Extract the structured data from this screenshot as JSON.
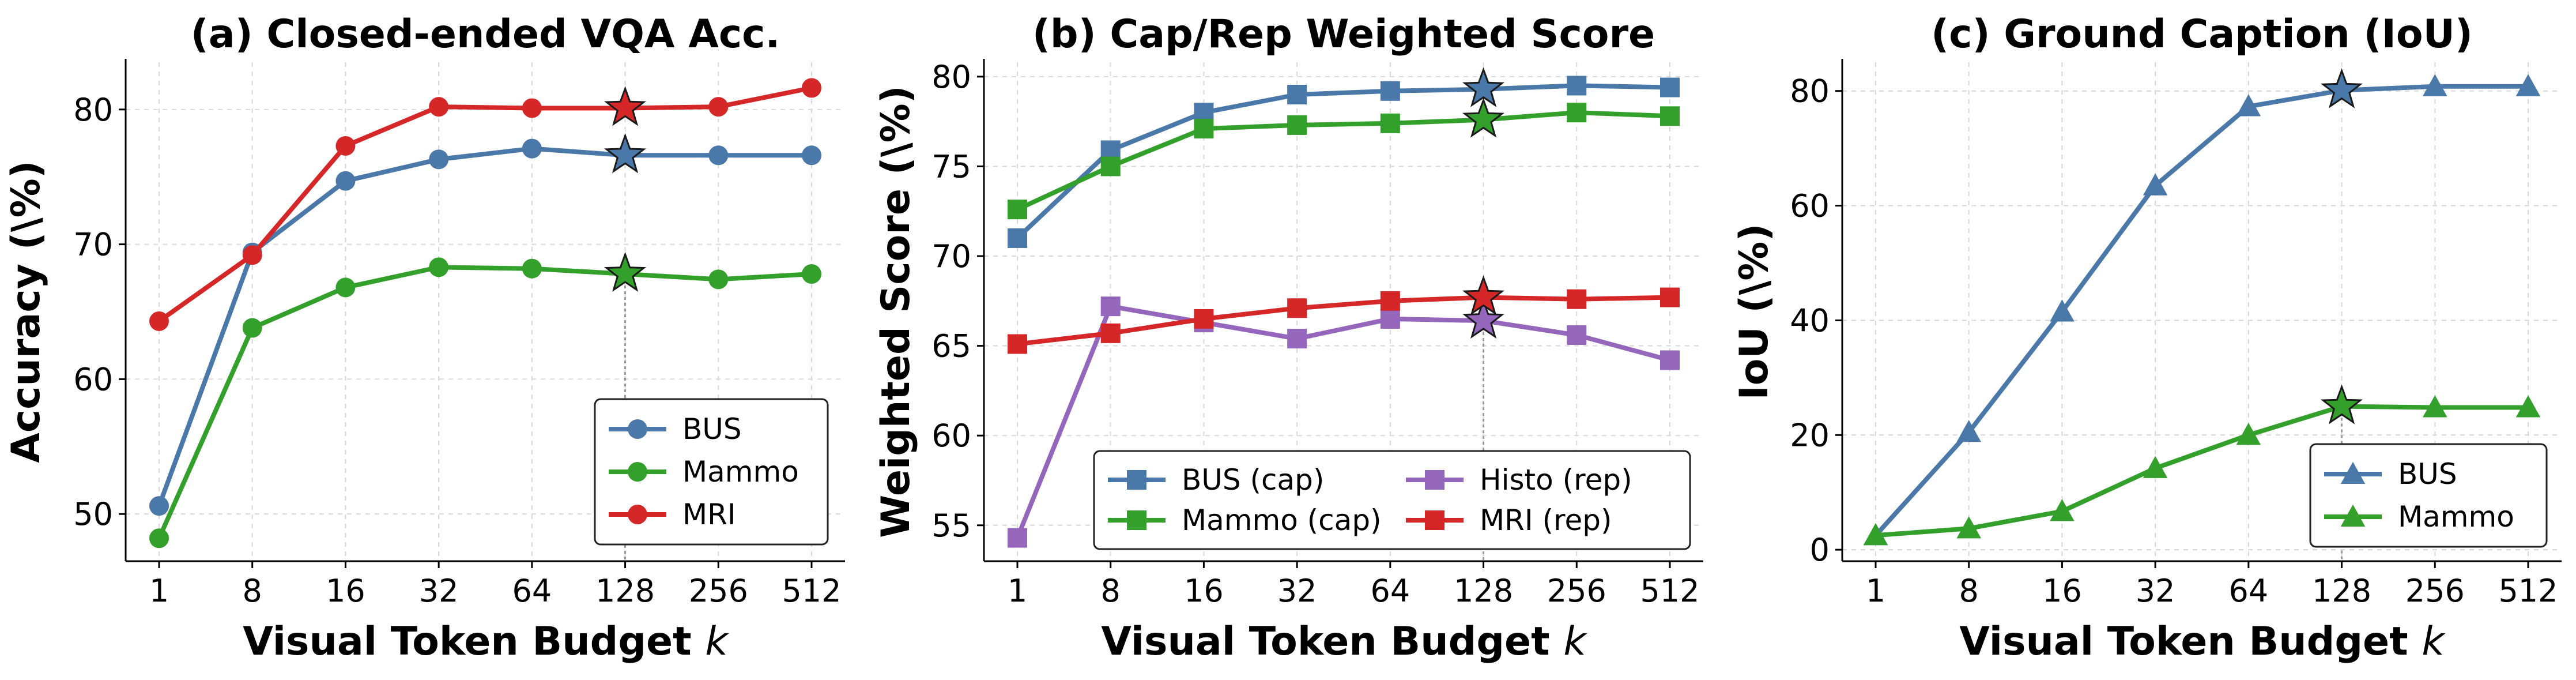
{
  "chart_data": [
    {
      "type": "line",
      "title": "(a) Closed-ended VQA Acc.",
      "xlabel": "Visual Token Budget k",
      "ylabel": "Accuracy (\\%)",
      "categories": [
        "1",
        "8",
        "16",
        "32",
        "64",
        "128",
        "256",
        "512"
      ],
      "ylim": [
        46.5,
        83.5
      ],
      "yticks": [
        50,
        60,
        70,
        80
      ],
      "grid": true,
      "highlight_category": "128",
      "legend": {
        "placement": "bottom-right",
        "columns": 1
      },
      "series": [
        {
          "name": "BUS",
          "color": "#4a78a8",
          "marker": "circle",
          "values": [
            50.6,
            69.4,
            74.7,
            76.3,
            77.1,
            76.6,
            76.6,
            76.6
          ]
        },
        {
          "name": "Mammo",
          "color": "#33a02c",
          "marker": "circle",
          "values": [
            48.2,
            63.8,
            66.8,
            68.3,
            68.2,
            67.8,
            67.4,
            67.8
          ]
        },
        {
          "name": "MRI",
          "color": "#d62728",
          "marker": "circle",
          "values": [
            64.3,
            69.2,
            77.3,
            80.2,
            80.1,
            80.1,
            80.2,
            81.6
          ]
        }
      ]
    },
    {
      "type": "line",
      "title": "(b) Cap/Rep Weighted Score",
      "xlabel": "Visual Token Budget k",
      "ylabel": "Weighted Score (\\%)",
      "categories": [
        "1",
        "8",
        "16",
        "32",
        "64",
        "128",
        "256",
        "512"
      ],
      "ylim": [
        53.0,
        80.8
      ],
      "yticks": [
        55,
        60,
        65,
        70,
        75,
        80
      ],
      "grid": true,
      "highlight_category": "128",
      "legend": {
        "placement": "bottom-right",
        "columns": 2
      },
      "series": [
        {
          "name": "BUS (cap)",
          "color": "#4a78a8",
          "marker": "square",
          "values": [
            71.0,
            75.9,
            78.0,
            79.0,
            79.2,
            79.3,
            79.5,
            79.4
          ]
        },
        {
          "name": "Mammo (cap)",
          "color": "#33a02c",
          "marker": "square",
          "values": [
            72.6,
            75.0,
            77.1,
            77.3,
            77.4,
            77.6,
            78.0,
            77.8
          ]
        },
        {
          "name": "Histo (rep)",
          "color": "#9467bd",
          "marker": "square",
          "values": [
            54.3,
            67.2,
            66.3,
            65.4,
            66.5,
            66.4,
            65.6,
            64.2
          ]
        },
        {
          "name": "MRI (rep)",
          "color": "#d62728",
          "marker": "square",
          "values": [
            65.1,
            65.7,
            66.5,
            67.1,
            67.5,
            67.7,
            67.6,
            67.7
          ]
        }
      ]
    },
    {
      "type": "line",
      "title": "(c) Ground Caption (IoU)",
      "xlabel": "Visual Token Budget k",
      "ylabel": "IoU (\\%)",
      "categories": [
        "1",
        "8",
        "16",
        "32",
        "64",
        "128",
        "256",
        "512"
      ],
      "ylim": [
        -2.0,
        85.0
      ],
      "yticks": [
        0,
        20,
        40,
        60,
        80
      ],
      "grid": true,
      "highlight_category": "128",
      "legend": {
        "placement": "bottom-right",
        "columns": 1
      },
      "series": [
        {
          "name": "BUS",
          "color": "#4a78a8",
          "marker": "triangle",
          "values": [
            2.5,
            20.5,
            41.5,
            63.5,
            77.3,
            80.1,
            80.8,
            80.8
          ]
        },
        {
          "name": "Mammo",
          "color": "#33a02c",
          "marker": "triangle",
          "values": [
            2.5,
            3.7,
            6.7,
            14.2,
            20.0,
            25.0,
            24.8,
            24.8
          ]
        }
      ]
    }
  ]
}
